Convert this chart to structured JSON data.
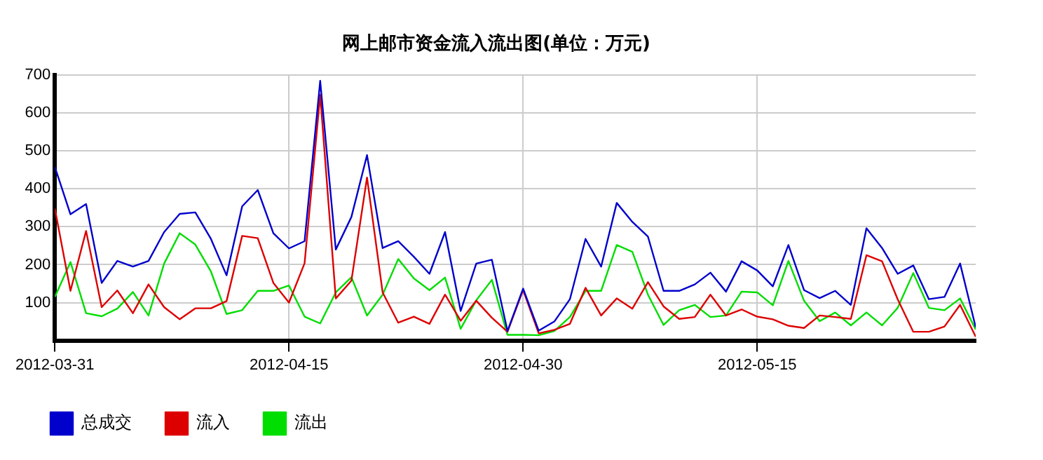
{
  "chart_data": {
    "type": "line",
    "title": "网上邮市资金流入流出图(单位：万元)",
    "x": [
      "2012-03-31",
      "2012-04-01",
      "2012-04-02",
      "2012-04-03",
      "2012-04-04",
      "2012-04-05",
      "2012-04-06",
      "2012-04-07",
      "2012-04-08",
      "2012-04-09",
      "2012-04-10",
      "2012-04-11",
      "2012-04-12",
      "2012-04-13",
      "2012-04-14",
      "2012-04-15",
      "2012-04-16",
      "2012-04-17",
      "2012-04-18",
      "2012-04-19",
      "2012-04-20",
      "2012-04-21",
      "2012-04-22",
      "2012-04-23",
      "2012-04-24",
      "2012-04-25",
      "2012-04-26",
      "2012-04-27",
      "2012-04-28",
      "2012-04-29",
      "2012-04-30",
      "2012-05-01",
      "2012-05-02",
      "2012-05-03",
      "2012-05-04",
      "2012-05-05",
      "2012-05-06",
      "2012-05-07",
      "2012-05-08",
      "2012-05-09",
      "2012-05-10",
      "2012-05-11",
      "2012-05-12",
      "2012-05-13",
      "2012-05-14",
      "2012-05-15",
      "2012-05-16",
      "2012-05-17",
      "2012-05-18",
      "2012-05-19",
      "2012-05-20",
      "2012-05-21",
      "2012-05-22",
      "2012-05-23",
      "2012-05-24",
      "2012-05-25",
      "2012-05-26",
      "2012-05-27",
      "2012-05-28",
      "2012-05-29"
    ],
    "series": [
      {
        "name": "总成交",
        "color": "#0000cc",
        "values": [
          458,
          333,
          360,
          152,
          210,
          195,
          210,
          286,
          334,
          338,
          268,
          172,
          354,
          397,
          283,
          243,
          262,
          685,
          240,
          326,
          489,
          244,
          262,
          221,
          176,
          286,
          78,
          203,
          213,
          25,
          137,
          26,
          50,
          109,
          268,
          195,
          363,
          313,
          274,
          131,
          131,
          148,
          179,
          129,
          209,
          185,
          143,
          252,
          133,
          112,
          131,
          94,
          296,
          244,
          176,
          198,
          109,
          115,
          203,
          35
        ]
      },
      {
        "name": "流入",
        "color": "#dd0000",
        "values": [
          348,
          131,
          289,
          88,
          132,
          72,
          148,
          88,
          56,
          85,
          85,
          104,
          276,
          270,
          152,
          100,
          204,
          648,
          111,
          158,
          430,
          127,
          47,
          63,
          44,
          121,
          52,
          105,
          60,
          23,
          133,
          19,
          28,
          44,
          139,
          66,
          111,
          84,
          154,
          90,
          57,
          62,
          121,
          66,
          82,
          63,
          56,
          39,
          33,
          66,
          62,
          57,
          225,
          209,
          109,
          23,
          23,
          37,
          94,
          10
        ]
      },
      {
        "name": "流出",
        "color": "#00dd00",
        "values": [
          115,
          207,
          72,
          64,
          84,
          128,
          66,
          203,
          283,
          253,
          182,
          70,
          80,
          131,
          131,
          145,
          63,
          45,
          127,
          167,
          66,
          121,
          215,
          164,
          133,
          166,
          31,
          106,
          160,
          15,
          15,
          14,
          25,
          62,
          131,
          131,
          252,
          234,
          121,
          41,
          80,
          94,
          62,
          66,
          129,
          127,
          93,
          210,
          105,
          51,
          74,
          40,
          74,
          40,
          86,
          178,
          86,
          80,
          111,
          29
        ]
      }
    ],
    "xlim": [
      "2012-03-31",
      "2012-05-29"
    ],
    "xticks": [
      "2012-03-31",
      "2012-04-15",
      "2012-04-30",
      "2012-05-15"
    ],
    "ylim": [
      0,
      700
    ],
    "yticks": [
      100,
      200,
      300,
      400,
      500,
      600,
      700
    ],
    "grid": true,
    "legend": "bottom",
    "marker": "none",
    "line_style": "solid"
  }
}
